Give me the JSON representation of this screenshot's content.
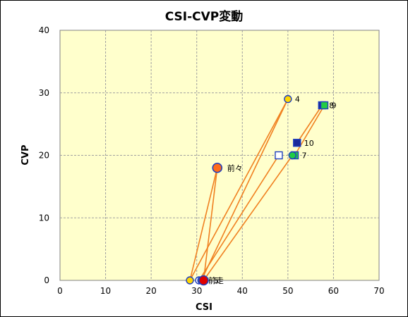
{
  "chart_data": {
    "type": "scatter",
    "title": "CSI-CVP変動",
    "xlabel": "CSI",
    "ylabel": "CVP",
    "xlim": [
      0,
      70
    ],
    "ylim": [
      0,
      40
    ],
    "xticks": [
      0,
      10,
      20,
      30,
      40,
      50,
      60,
      70
    ],
    "yticks": [
      0,
      10,
      20,
      30,
      40
    ],
    "grid": true,
    "colors": {
      "plot_bg": "#ffffcc",
      "grid": "#a0a0a0",
      "line": "#f08020",
      "marker_edge": "#1f3fbf",
      "marker_fill_yellow": "#ffd700",
      "marker_fill_navy": "#1a2a9a",
      "marker_fill_green": "#22cc44",
      "marker_fill_white": "#ffffff",
      "marker_fill_red": "#e00000",
      "marker_fill_orange": "#ff6a1a"
    },
    "points": [
      {
        "label": "4",
        "x": 50,
        "y": 29,
        "shape": "circle",
        "fill": "yellow"
      },
      {
        "label": "8",
        "x": 57.5,
        "y": 28,
        "shape": "square",
        "fill": "navy"
      },
      {
        "label": "9",
        "x": 58,
        "y": 28,
        "shape": "square",
        "fill": "green"
      },
      {
        "label": "10",
        "x": 52,
        "y": 22,
        "shape": "square",
        "fill": "navy"
      },
      {
        "label": "7",
        "x": 51.5,
        "y": 20,
        "shape": "square",
        "fill": "green"
      },
      {
        "label": "",
        "x": 51,
        "y": 20,
        "shape": "circle",
        "fill": "green"
      },
      {
        "label": "",
        "x": 48,
        "y": 20,
        "shape": "square",
        "fill": "white"
      },
      {
        "label": "前々",
        "x": 34.5,
        "y": 18,
        "shape": "circle-large",
        "fill": "orange"
      },
      {
        "label": "",
        "x": 28.5,
        "y": 0,
        "shape": "circle",
        "fill": "yellow"
      },
      {
        "label": "",
        "x": 30.5,
        "y": 0,
        "shape": "circle",
        "fill": "white"
      },
      {
        "label": "",
        "x": 31,
        "y": 0,
        "shape": "circle",
        "fill": "green"
      },
      {
        "label": "5",
        "x": 31.5,
        "y": 0,
        "shape": "circle-large",
        "fill": "red"
      },
      {
        "label": "前走",
        "x": 32.5,
        "y": 0,
        "shape": "none",
        "fill": "none"
      }
    ],
    "segments": [
      {
        "from": [
          28.5,
          0
        ],
        "to": [
          34.5,
          18
        ]
      },
      {
        "from": [
          31.5,
          0
        ],
        "to": [
          34.5,
          18
        ]
      },
      {
        "from": [
          28.5,
          0
        ],
        "to": [
          50,
          29
        ]
      },
      {
        "from": [
          31,
          0
        ],
        "to": [
          50,
          29
        ]
      },
      {
        "from": [
          30.5,
          0
        ],
        "to": [
          48,
          20
        ]
      },
      {
        "from": [
          31.5,
          0
        ],
        "to": [
          51,
          20
        ]
      },
      {
        "from": [
          51.5,
          20
        ],
        "to": [
          58,
          28
        ]
      },
      {
        "from": [
          52,
          22
        ],
        "to": [
          57.5,
          28
        ]
      }
    ]
  }
}
